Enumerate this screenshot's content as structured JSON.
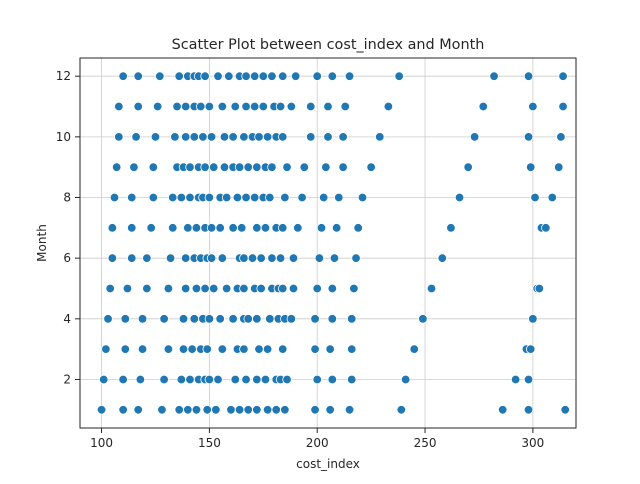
{
  "chart_data": {
    "type": "scatter",
    "title": "Scatter Plot between cost_index and Month",
    "xlabel": "cost_index",
    "ylabel": "Month",
    "xlim": [
      90,
      320
    ],
    "ylim": [
      0.4,
      12.6
    ],
    "xticks": [
      100,
      150,
      200,
      250,
      300
    ],
    "yticks": [
      2,
      4,
      6,
      8,
      10,
      12
    ],
    "grid": true,
    "marker_color": "#1f77b4",
    "points": [
      {
        "x": 100,
        "y": 1
      },
      {
        "x": 110,
        "y": 1
      },
      {
        "x": 117,
        "y": 1
      },
      {
        "x": 128,
        "y": 1
      },
      {
        "x": 136,
        "y": 1
      },
      {
        "x": 140,
        "y": 1
      },
      {
        "x": 144,
        "y": 1
      },
      {
        "x": 149,
        "y": 1
      },
      {
        "x": 153,
        "y": 1
      },
      {
        "x": 160,
        "y": 1
      },
      {
        "x": 164,
        "y": 1
      },
      {
        "x": 168,
        "y": 1
      },
      {
        "x": 172,
        "y": 1
      },
      {
        "x": 177,
        "y": 1
      },
      {
        "x": 181,
        "y": 1
      },
      {
        "x": 185,
        "y": 1
      },
      {
        "x": 199,
        "y": 1
      },
      {
        "x": 206,
        "y": 1
      },
      {
        "x": 215,
        "y": 1
      },
      {
        "x": 239,
        "y": 1
      },
      {
        "x": 286,
        "y": 1
      },
      {
        "x": 298,
        "y": 1
      },
      {
        "x": 315,
        "y": 1
      },
      {
        "x": 101,
        "y": 2
      },
      {
        "x": 110,
        "y": 2
      },
      {
        "x": 118,
        "y": 2
      },
      {
        "x": 129,
        "y": 2
      },
      {
        "x": 137,
        "y": 2
      },
      {
        "x": 141,
        "y": 2
      },
      {
        "x": 145,
        "y": 2
      },
      {
        "x": 148,
        "y": 2
      },
      {
        "x": 150,
        "y": 2
      },
      {
        "x": 154,
        "y": 2
      },
      {
        "x": 162,
        "y": 2
      },
      {
        "x": 167,
        "y": 2
      },
      {
        "x": 172,
        "y": 2
      },
      {
        "x": 176,
        "y": 2
      },
      {
        "x": 181,
        "y": 2
      },
      {
        "x": 183,
        "y": 2
      },
      {
        "x": 186,
        "y": 2
      },
      {
        "x": 200,
        "y": 2
      },
      {
        "x": 207,
        "y": 2
      },
      {
        "x": 216,
        "y": 2
      },
      {
        "x": 241,
        "y": 2
      },
      {
        "x": 292,
        "y": 2
      },
      {
        "x": 298,
        "y": 2
      },
      {
        "x": 102,
        "y": 3
      },
      {
        "x": 111,
        "y": 3
      },
      {
        "x": 119,
        "y": 3
      },
      {
        "x": 131,
        "y": 3
      },
      {
        "x": 138,
        "y": 3
      },
      {
        "x": 142,
        "y": 3
      },
      {
        "x": 146,
        "y": 3
      },
      {
        "x": 149,
        "y": 3
      },
      {
        "x": 156,
        "y": 3
      },
      {
        "x": 163,
        "y": 3
      },
      {
        "x": 166,
        "y": 3
      },
      {
        "x": 173,
        "y": 3
      },
      {
        "x": 177,
        "y": 3
      },
      {
        "x": 184,
        "y": 3
      },
      {
        "x": 199,
        "y": 3
      },
      {
        "x": 206,
        "y": 3
      },
      {
        "x": 216,
        "y": 3
      },
      {
        "x": 245,
        "y": 3
      },
      {
        "x": 297,
        "y": 3
      },
      {
        "x": 299,
        "y": 3
      },
      {
        "x": 103,
        "y": 4
      },
      {
        "x": 111,
        "y": 4
      },
      {
        "x": 119,
        "y": 4
      },
      {
        "x": 129,
        "y": 4
      },
      {
        "x": 138,
        "y": 4
      },
      {
        "x": 143,
        "y": 4
      },
      {
        "x": 147,
        "y": 4
      },
      {
        "x": 150,
        "y": 4
      },
      {
        "x": 155,
        "y": 4
      },
      {
        "x": 161,
        "y": 4
      },
      {
        "x": 166,
        "y": 4
      },
      {
        "x": 168,
        "y": 4
      },
      {
        "x": 172,
        "y": 4
      },
      {
        "x": 178,
        "y": 4
      },
      {
        "x": 182,
        "y": 4
      },
      {
        "x": 185,
        "y": 4
      },
      {
        "x": 188,
        "y": 4
      },
      {
        "x": 199,
        "y": 4
      },
      {
        "x": 207,
        "y": 4
      },
      {
        "x": 216,
        "y": 4
      },
      {
        "x": 249,
        "y": 4
      },
      {
        "x": 300,
        "y": 4
      },
      {
        "x": 104,
        "y": 5
      },
      {
        "x": 112,
        "y": 5
      },
      {
        "x": 121,
        "y": 5
      },
      {
        "x": 131,
        "y": 5
      },
      {
        "x": 139,
        "y": 5
      },
      {
        "x": 144,
        "y": 5
      },
      {
        "x": 148,
        "y": 5
      },
      {
        "x": 152,
        "y": 5
      },
      {
        "x": 158,
        "y": 5
      },
      {
        "x": 163,
        "y": 5
      },
      {
        "x": 166,
        "y": 5
      },
      {
        "x": 171,
        "y": 5
      },
      {
        "x": 174,
        "y": 5
      },
      {
        "x": 179,
        "y": 5
      },
      {
        "x": 182,
        "y": 5
      },
      {
        "x": 184,
        "y": 5
      },
      {
        "x": 189,
        "y": 5
      },
      {
        "x": 200,
        "y": 5
      },
      {
        "x": 207,
        "y": 5
      },
      {
        "x": 217,
        "y": 5
      },
      {
        "x": 253,
        "y": 5
      },
      {
        "x": 302,
        "y": 5
      },
      {
        "x": 303,
        "y": 5
      },
      {
        "x": 105,
        "y": 6
      },
      {
        "x": 114,
        "y": 6
      },
      {
        "x": 121,
        "y": 6
      },
      {
        "x": 132,
        "y": 6
      },
      {
        "x": 139,
        "y": 6
      },
      {
        "x": 143,
        "y": 6
      },
      {
        "x": 146,
        "y": 6
      },
      {
        "x": 149,
        "y": 6
      },
      {
        "x": 151,
        "y": 6
      },
      {
        "x": 156,
        "y": 6
      },
      {
        "x": 164,
        "y": 6
      },
      {
        "x": 166,
        "y": 6
      },
      {
        "x": 170,
        "y": 6
      },
      {
        "x": 174,
        "y": 6
      },
      {
        "x": 179,
        "y": 6
      },
      {
        "x": 183,
        "y": 6
      },
      {
        "x": 189,
        "y": 6
      },
      {
        "x": 201,
        "y": 6
      },
      {
        "x": 208,
        "y": 6
      },
      {
        "x": 218,
        "y": 6
      },
      {
        "x": 258,
        "y": 6
      },
      {
        "x": 105,
        "y": 7
      },
      {
        "x": 114,
        "y": 7
      },
      {
        "x": 123,
        "y": 7
      },
      {
        "x": 133,
        "y": 7
      },
      {
        "x": 140,
        "y": 7
      },
      {
        "x": 144,
        "y": 7
      },
      {
        "x": 148,
        "y": 7
      },
      {
        "x": 151,
        "y": 7
      },
      {
        "x": 155,
        "y": 7
      },
      {
        "x": 161,
        "y": 7
      },
      {
        "x": 165,
        "y": 7
      },
      {
        "x": 172,
        "y": 7
      },
      {
        "x": 176,
        "y": 7
      },
      {
        "x": 181,
        "y": 7
      },
      {
        "x": 184,
        "y": 7
      },
      {
        "x": 191,
        "y": 7
      },
      {
        "x": 202,
        "y": 7
      },
      {
        "x": 209,
        "y": 7
      },
      {
        "x": 219,
        "y": 7
      },
      {
        "x": 262,
        "y": 7
      },
      {
        "x": 304,
        "y": 7
      },
      {
        "x": 306,
        "y": 7
      },
      {
        "x": 106,
        "y": 8
      },
      {
        "x": 114,
        "y": 8
      },
      {
        "x": 124,
        "y": 8
      },
      {
        "x": 133,
        "y": 8
      },
      {
        "x": 137,
        "y": 8
      },
      {
        "x": 141,
        "y": 8
      },
      {
        "x": 145,
        "y": 8
      },
      {
        "x": 147,
        "y": 8
      },
      {
        "x": 150,
        "y": 8
      },
      {
        "x": 155,
        "y": 8
      },
      {
        "x": 158,
        "y": 8
      },
      {
        "x": 163,
        "y": 8
      },
      {
        "x": 167,
        "y": 8
      },
      {
        "x": 171,
        "y": 8
      },
      {
        "x": 175,
        "y": 8
      },
      {
        "x": 178,
        "y": 8
      },
      {
        "x": 185,
        "y": 8
      },
      {
        "x": 193,
        "y": 8
      },
      {
        "x": 203,
        "y": 8
      },
      {
        "x": 210,
        "y": 8
      },
      {
        "x": 221,
        "y": 8
      },
      {
        "x": 266,
        "y": 8
      },
      {
        "x": 301,
        "y": 8
      },
      {
        "x": 309,
        "y": 8
      },
      {
        "x": 107,
        "y": 9
      },
      {
        "x": 115,
        "y": 9
      },
      {
        "x": 124,
        "y": 9
      },
      {
        "x": 135,
        "y": 9
      },
      {
        "x": 138,
        "y": 9
      },
      {
        "x": 141,
        "y": 9
      },
      {
        "x": 145,
        "y": 9
      },
      {
        "x": 148,
        "y": 9
      },
      {
        "x": 152,
        "y": 9
      },
      {
        "x": 157,
        "y": 9
      },
      {
        "x": 161,
        "y": 9
      },
      {
        "x": 164,
        "y": 9
      },
      {
        "x": 168,
        "y": 9
      },
      {
        "x": 172,
        "y": 9
      },
      {
        "x": 176,
        "y": 9
      },
      {
        "x": 179,
        "y": 9
      },
      {
        "x": 186,
        "y": 9
      },
      {
        "x": 194,
        "y": 9
      },
      {
        "x": 204,
        "y": 9
      },
      {
        "x": 212,
        "y": 9
      },
      {
        "x": 225,
        "y": 9
      },
      {
        "x": 270,
        "y": 9
      },
      {
        "x": 299,
        "y": 9
      },
      {
        "x": 312,
        "y": 9
      },
      {
        "x": 108,
        "y": 10
      },
      {
        "x": 116,
        "y": 10
      },
      {
        "x": 125,
        "y": 10
      },
      {
        "x": 134,
        "y": 10
      },
      {
        "x": 139,
        "y": 10
      },
      {
        "x": 143,
        "y": 10
      },
      {
        "x": 147,
        "y": 10
      },
      {
        "x": 151,
        "y": 10
      },
      {
        "x": 157,
        "y": 10
      },
      {
        "x": 161,
        "y": 10
      },
      {
        "x": 166,
        "y": 10
      },
      {
        "x": 170,
        "y": 10
      },
      {
        "x": 173,
        "y": 10
      },
      {
        "x": 177,
        "y": 10
      },
      {
        "x": 181,
        "y": 10
      },
      {
        "x": 184,
        "y": 10
      },
      {
        "x": 197,
        "y": 10
      },
      {
        "x": 205,
        "y": 10
      },
      {
        "x": 212,
        "y": 10
      },
      {
        "x": 229,
        "y": 10
      },
      {
        "x": 273,
        "y": 10
      },
      {
        "x": 298,
        "y": 10
      },
      {
        "x": 313,
        "y": 10
      },
      {
        "x": 108,
        "y": 11
      },
      {
        "x": 117,
        "y": 11
      },
      {
        "x": 126,
        "y": 11
      },
      {
        "x": 135,
        "y": 11
      },
      {
        "x": 139,
        "y": 11
      },
      {
        "x": 143,
        "y": 11
      },
      {
        "x": 146,
        "y": 11
      },
      {
        "x": 150,
        "y": 11
      },
      {
        "x": 156,
        "y": 11
      },
      {
        "x": 162,
        "y": 11
      },
      {
        "x": 167,
        "y": 11
      },
      {
        "x": 171,
        "y": 11
      },
      {
        "x": 175,
        "y": 11
      },
      {
        "x": 180,
        "y": 11
      },
      {
        "x": 183,
        "y": 11
      },
      {
        "x": 188,
        "y": 11
      },
      {
        "x": 197,
        "y": 11
      },
      {
        "x": 205,
        "y": 11
      },
      {
        "x": 213,
        "y": 11
      },
      {
        "x": 233,
        "y": 11
      },
      {
        "x": 277,
        "y": 11
      },
      {
        "x": 300,
        "y": 11
      },
      {
        "x": 314,
        "y": 11
      },
      {
        "x": 110,
        "y": 12
      },
      {
        "x": 117,
        "y": 12
      },
      {
        "x": 127,
        "y": 12
      },
      {
        "x": 136,
        "y": 12
      },
      {
        "x": 140,
        "y": 12
      },
      {
        "x": 143,
        "y": 12
      },
      {
        "x": 145,
        "y": 12
      },
      {
        "x": 148,
        "y": 12
      },
      {
        "x": 154,
        "y": 12
      },
      {
        "x": 159,
        "y": 12
      },
      {
        "x": 164,
        "y": 12
      },
      {
        "x": 167,
        "y": 12
      },
      {
        "x": 171,
        "y": 12
      },
      {
        "x": 175,
        "y": 12
      },
      {
        "x": 179,
        "y": 12
      },
      {
        "x": 184,
        "y": 12
      },
      {
        "x": 190,
        "y": 12
      },
      {
        "x": 200,
        "y": 12
      },
      {
        "x": 207,
        "y": 12
      },
      {
        "x": 215,
        "y": 12
      },
      {
        "x": 238,
        "y": 12
      },
      {
        "x": 282,
        "y": 12
      },
      {
        "x": 298,
        "y": 12
      },
      {
        "x": 314,
        "y": 12
      }
    ]
  }
}
